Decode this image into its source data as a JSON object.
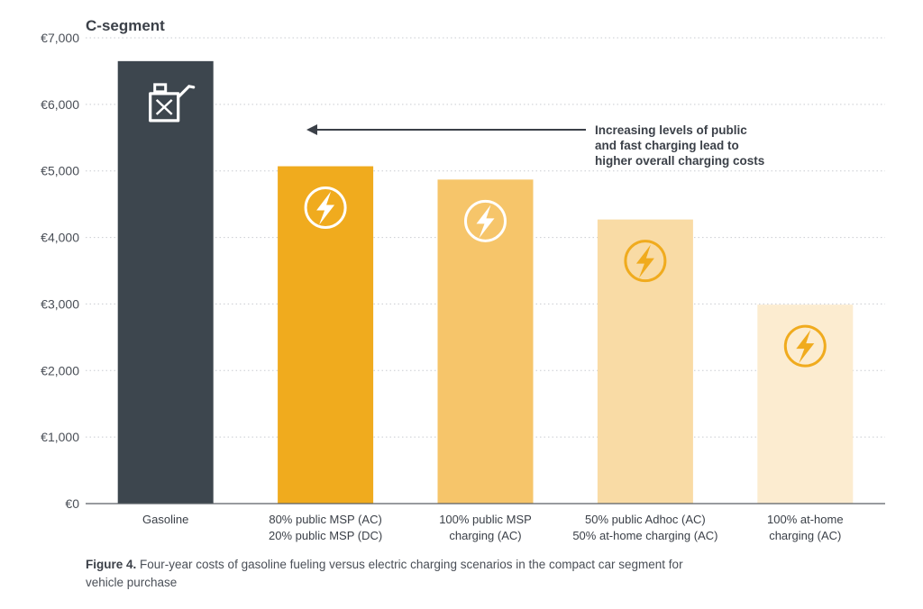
{
  "chart_data": {
    "type": "bar",
    "title": "C-segment",
    "categories": [
      [
        "Gasoline"
      ],
      [
        "80% public MSP (AC)",
        "20% public MSP (DC)"
      ],
      [
        "100% public MSP",
        "charging (AC)"
      ],
      [
        "50% public Adhoc (AC)",
        "50% at-home charging (AC)"
      ],
      [
        "100% at-home",
        "charging (AC)"
      ]
    ],
    "values": [
      6650,
      5070,
      4870,
      4270,
      2990
    ],
    "bar_colors": [
      "#3d464e",
      "#f0ab1e",
      "#f6c56a",
      "#f9dba5",
      "#fcecd0"
    ],
    "icons": [
      "fuel-can-icon",
      "lightning-bolt-icon",
      "lightning-bolt-icon",
      "lightning-bolt-icon",
      "lightning-bolt-icon"
    ],
    "icon_colors": [
      "#ffffff",
      "#ffffff",
      "#ffffff",
      "#f0ab1e",
      "#f0ab1e"
    ],
    "ylim": [
      0,
      7000
    ],
    "yticks": [
      0,
      1000,
      2000,
      3000,
      4000,
      5000,
      6000,
      7000
    ],
    "ytick_labels": [
      "€0",
      "€1,000",
      "€2,000",
      "€3,000",
      "€4,000",
      "€5,000",
      "€6,000",
      "€7,000"
    ],
    "xlabel": "",
    "ylabel": "",
    "grid": "horizontal dotted",
    "annotation": {
      "lines": [
        "Increasing levels of public",
        "and fast charging lead to",
        "higher overall charging costs"
      ],
      "arrow": "points left toward higher-cost bars"
    }
  },
  "caption": {
    "label": "Figure 4.",
    "text": "Four-year costs of gasoline fueling versus electric charging scenarios in the compact car segment for vehicle purchase"
  }
}
